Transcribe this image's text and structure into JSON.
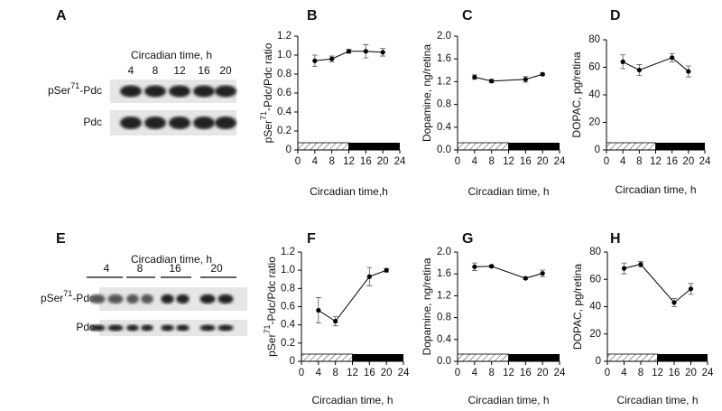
{
  "blots": [
    {
      "panel": "A",
      "header": "Circadian time, h",
      "lanes": [
        "4",
        "8",
        "12",
        "16",
        "20"
      ],
      "rows": [
        [
          "pSer",
          "71",
          "-Pdc"
        ],
        [
          "Pdc"
        ]
      ]
    },
    {
      "panel": "E",
      "header": "Circadian time, h",
      "lanes": [
        "4",
        "8",
        "16",
        "20"
      ],
      "rows": [
        [
          "pSer",
          "71",
          "-Pdc"
        ],
        [
          "Pdc"
        ]
      ]
    }
  ],
  "chart_data": [
    {
      "type": "line",
      "panel": "B",
      "color": "#000000",
      "x": [
        4,
        8,
        12,
        16,
        20
      ],
      "values": [
        0.94,
        0.96,
        1.04,
        1.04,
        1.03
      ],
      "errors": [
        0.06,
        0.03,
        0.02,
        0.07,
        0.04
      ],
      "xlim": [
        0,
        24
      ],
      "xticks": [
        0,
        4,
        8,
        12,
        16,
        20,
        24
      ],
      "ylim": [
        0,
        1.2
      ],
      "yticks": [
        0,
        0.2,
        0.4,
        0.6,
        0.8,
        {
          "value": 1,
          "label": "1.0"
        },
        1.2
      ],
      "xlabel": "Circadian time,h",
      "ylabel": [
        "pSer",
        "71",
        "-Pdc/Pdc ratio"
      ],
      "light": [
        0,
        12
      ],
      "dark": [
        12,
        24
      ]
    },
    {
      "type": "line",
      "panel": "C",
      "color": "#000000",
      "x": [
        4,
        8,
        16,
        20
      ],
      "values": [
        1.28,
        1.21,
        1.24,
        1.33
      ],
      "errors": [
        0.04,
        0.03,
        0.05,
        0.02
      ],
      "xlim": [
        0,
        24
      ],
      "xticks": [
        0,
        4,
        8,
        12,
        16,
        20,
        24
      ],
      "ylim": [
        0,
        2
      ],
      "yticks": [
        {
          "value": 0,
          "label": "0.0"
        },
        0.4,
        0.8,
        1.2,
        1.6,
        {
          "value": 2,
          "label": "2.0"
        }
      ],
      "xlabel": "Circadian time, h",
      "ylabel": [
        "Dopamine, ng/retina"
      ],
      "light": [
        0,
        12
      ],
      "dark": [
        12,
        24
      ]
    },
    {
      "type": "line",
      "panel": "D",
      "color": "#000000",
      "x": [
        4,
        8,
        16,
        20
      ],
      "values": [
        64,
        58,
        67,
        57
      ],
      "errors": [
        5,
        4,
        3,
        4
      ],
      "xlim": [
        0,
        24
      ],
      "xticks": [
        0,
        4,
        8,
        12,
        16,
        20,
        24
      ],
      "ylim": [
        0,
        80
      ],
      "yticks": [
        0,
        20,
        40,
        60,
        80
      ],
      "xlabel": "Circadian time, h",
      "ylabel": [
        "DOPAC, pg/retina"
      ],
      "light": [
        0,
        12
      ],
      "dark": [
        12,
        24
      ]
    },
    {
      "type": "line",
      "panel": "F",
      "color": "#000000",
      "x": [
        4,
        8,
        16,
        20
      ],
      "values": [
        0.56,
        0.44,
        0.93,
        1.0
      ],
      "errors": [
        0.14,
        0.05,
        0.1,
        0.02
      ],
      "xlim": [
        0,
        24
      ],
      "xticks": [
        0,
        4,
        8,
        12,
        16,
        20,
        24
      ],
      "ylim": [
        0,
        1.2
      ],
      "yticks": [
        0,
        0.2,
        0.4,
        0.6,
        0.8,
        {
          "value": 1,
          "label": "1.0"
        },
        1.2
      ],
      "xlabel": "Circadian time, h",
      "ylabel": [
        "pSer",
        "71",
        "-Pdc/Pdc ratio"
      ],
      "light": [
        0,
        12
      ],
      "dark": [
        12,
        24
      ]
    },
    {
      "type": "line",
      "panel": "G",
      "color": "#000000",
      "x": [
        4,
        8,
        16,
        20
      ],
      "values": [
        1.73,
        1.74,
        1.52,
        1.61
      ],
      "errors": [
        0.07,
        0.02,
        0.02,
        0.06
      ],
      "xlim": [
        0,
        24
      ],
      "xticks": [
        0,
        4,
        8,
        12,
        16,
        20,
        24
      ],
      "ylim": [
        0,
        2
      ],
      "yticks": [
        {
          "value": 0,
          "label": "0.0"
        },
        0.4,
        0.8,
        1.2,
        1.6,
        {
          "value": 2,
          "label": "2.0"
        }
      ],
      "xlabel": "Circadian time, h",
      "ylabel": [
        "Dopamine, ng/retina"
      ],
      "light": [
        0,
        12
      ],
      "dark": [
        12,
        24
      ]
    },
    {
      "type": "line",
      "panel": "H",
      "color": "#000000",
      "x": [
        4,
        8,
        16,
        20
      ],
      "values": [
        68,
        71,
        43,
        53
      ],
      "errors": [
        4,
        2,
        3,
        4
      ],
      "xlim": [
        0,
        24
      ],
      "xticks": [
        0,
        4,
        8,
        12,
        16,
        20,
        24
      ],
      "ylim": [
        0,
        80
      ],
      "yticks": [
        0,
        20,
        40,
        60,
        80
      ],
      "xlabel": "Circadian time, h",
      "ylabel": [
        "DOPAC, pg/retina"
      ],
      "light": [
        0,
        12
      ],
      "dark": [
        12,
        24
      ]
    }
  ]
}
